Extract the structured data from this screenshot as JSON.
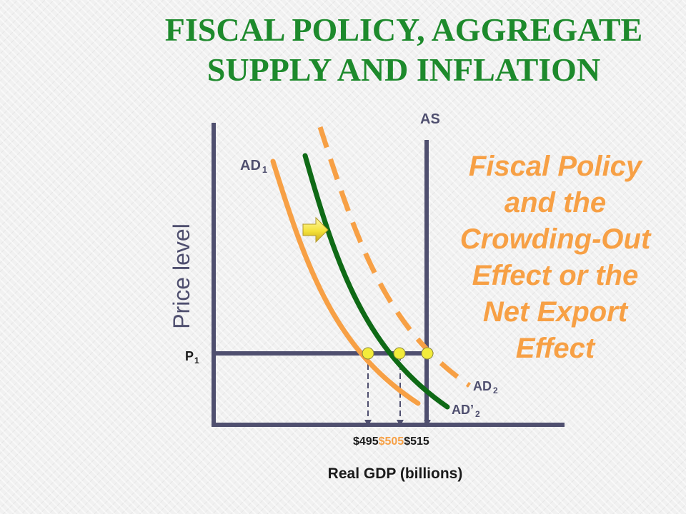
{
  "slide": {
    "title_lines": [
      "FISCAL POLICY, AGGREGATE",
      "SUPPLY AND INFLATION"
    ],
    "note_lines": [
      "Fiscal Policy",
      "and the",
      "Crowding-Out",
      "Effect or the",
      "Net Export",
      "Effect"
    ]
  },
  "diagram": {
    "y_axis_label": "Price level",
    "x_axis_label": "Real GDP (billions)",
    "price_level": {
      "main": "P",
      "sub": "1"
    },
    "as_label": "AS",
    "curves": {
      "ad1": {
        "main": "AD",
        "sub": "1",
        "style": "solid",
        "color": "#f7a045"
      },
      "ad_prime2": {
        "main": "AD’",
        "sub": "2",
        "style": "solid",
        "color": "#0f6a16"
      },
      "ad2": {
        "main": "AD",
        "sub": "2",
        "style": "dashed",
        "color": "#f7a045"
      }
    },
    "gdp_ticks": [
      {
        "text": "$495",
        "color": "#1a1a1a"
      },
      {
        "text": "$505",
        "color": "#f7a045"
      },
      {
        "text": "$515",
        "color": "#1a1a1a"
      }
    ],
    "shift_arrow": "right-arrow-icon"
  },
  "colors": {
    "title": "#1d8a2c",
    "note": "#f7a045",
    "axis": "#4f4f6f",
    "equilibrium_point": "#f3ec3a"
  }
}
